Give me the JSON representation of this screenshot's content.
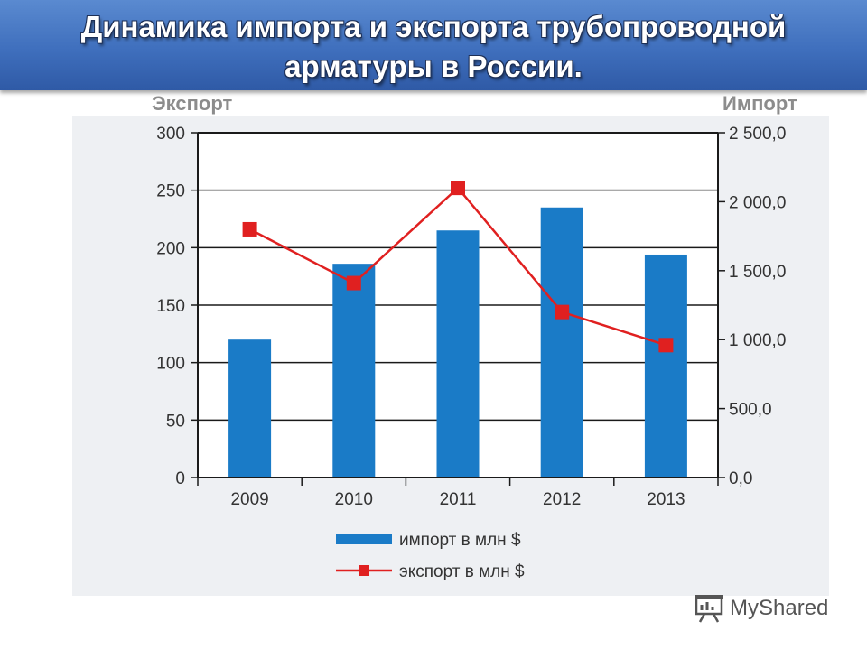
{
  "slide": {
    "title_line1": "Динамика импорта и экспорта трубопроводной",
    "title_line2": "арматуры в России.",
    "left_axis_caption": "Экспорт",
    "right_axis_caption": "Импорт",
    "watermark": "MyShared"
  },
  "chart_data": {
    "type": "bar",
    "categories": [
      "2009",
      "2010",
      "2011",
      "2012",
      "2013"
    ],
    "series": [
      {
        "name": "импорт в млн $",
        "type": "bar",
        "axis": "left",
        "values": [
          120,
          186,
          215,
          235,
          194
        ],
        "color": "#1a7bc7"
      },
      {
        "name": "экспорт в млн $",
        "type": "line",
        "axis": "right",
        "values": [
          1800,
          1410,
          2100,
          1200,
          960
        ],
        "color": "#e02020"
      }
    ],
    "left_axis": {
      "min": 0,
      "max": 300,
      "ticks": [
        "0",
        "50",
        "100",
        "150",
        "200",
        "250",
        "300"
      ]
    },
    "right_axis": {
      "min": 0,
      "max": 2500,
      "ticks": [
        "0,0",
        "500,0",
        "1 000,0",
        "1 500,0",
        "2 000,0",
        "2 500,0"
      ]
    },
    "grid": true,
    "legend_position": "bottom"
  }
}
